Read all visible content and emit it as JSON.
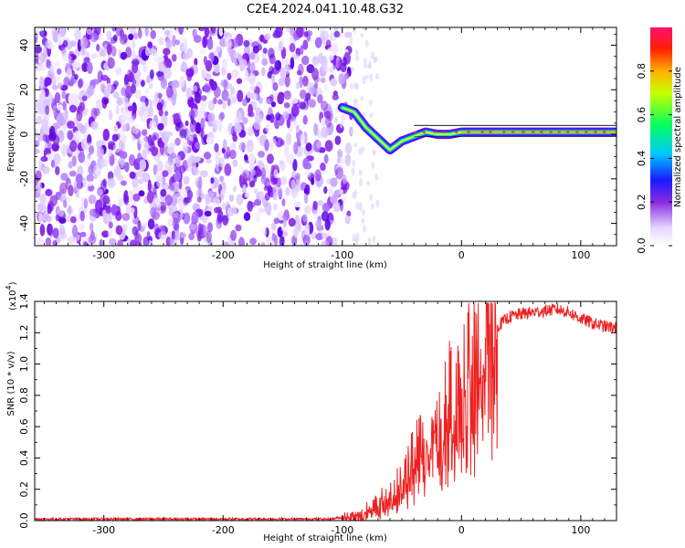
{
  "title": "C2E4.2024.041.10.48.G32",
  "chart_data": [
    {
      "type": "heatmap",
      "title": "C2E4.2024.041.10.48.G32",
      "xlabel": "Height of straight line (km)",
      "ylabel": "Frequency (Hz)",
      "xlim": [
        -358,
        130
      ],
      "ylim": [
        -50,
        48
      ],
      "xticks": [
        -300,
        -200,
        -100,
        0,
        100
      ],
      "yticks": [
        -40,
        -20,
        0,
        20,
        40
      ],
      "xtick_labels": [
        "-300",
        "-200",
        "-100",
        "0",
        "100"
      ],
      "ytick_labels": [
        "-40",
        "-20",
        "0",
        "20",
        "40"
      ],
      "colorbar": {
        "label": "Normalized spectral amplitude",
        "range": [
          0,
          1
        ],
        "ticks": [
          0.0,
          0.2,
          0.4,
          0.6,
          0.8
        ],
        "tick_labels": [
          "0.0",
          "0.2",
          "0.4",
          "0.6",
          "0.8"
        ],
        "colormap": "rainbow"
      },
      "description_of_signal": {
        "noise_region_x": [
          -358,
          -92
        ],
        "ridge": [
          {
            "x": -100,
            "f": 12
          },
          {
            "x": -90,
            "f": 10
          },
          {
            "x": -80,
            "f": 3
          },
          {
            "x": -70,
            "f": -2
          },
          {
            "x": -60,
            "f": -7
          },
          {
            "x": -50,
            "f": -3
          },
          {
            "x": -40,
            "f": -1
          },
          {
            "x": -30,
            "f": 1
          },
          {
            "x": -20,
            "f": 0
          },
          {
            "x": -10,
            "f": 0
          },
          {
            "x": 0,
            "f": 1
          },
          {
            "x": 20,
            "f": 1
          },
          {
            "x": 50,
            "f": 1
          },
          {
            "x": 80,
            "f": 1
          },
          {
            "x": 100,
            "f": 1
          },
          {
            "x": 130,
            "f": 1
          }
        ],
        "center_line_f": 1
      }
    },
    {
      "type": "line",
      "xlabel": "Height of straight line (km)",
      "ylabel": "SNR (10 * v/v)",
      "exponent_label": "(x10",
      "exponent_power": "4",
      "exponent_close": ")",
      "xlim": [
        -358,
        130
      ],
      "ylim": [
        0,
        1.4
      ],
      "xticks": [
        -300,
        -200,
        -100,
        0,
        100
      ],
      "yticks": [
        0.0,
        0.2,
        0.4,
        0.6,
        0.8,
        1.0,
        1.2,
        1.4
      ],
      "xtick_labels": [
        "-300",
        "-200",
        "-100",
        "0",
        "100"
      ],
      "ytick_labels": [
        "0.0",
        "0.2",
        "0.4",
        "0.6",
        "0.8",
        "1.0",
        "1.2",
        "1.4"
      ],
      "color": "#ee2222",
      "series": [
        {
          "name": "SNR",
          "x": [
            -358,
            -300,
            -250,
            -200,
            -150,
            -110,
            -100,
            -90,
            -80,
            -70,
            -60,
            -50,
            -40,
            -30,
            -20,
            -10,
            0,
            10,
            20,
            30,
            40,
            50,
            60,
            70,
            80,
            90,
            100,
            110,
            120,
            130
          ],
          "values": [
            0.01,
            0.01,
            0.01,
            0.01,
            0.01,
            0.01,
            0.02,
            0.04,
            0.07,
            0.1,
            0.17,
            0.25,
            0.38,
            0.5,
            0.62,
            0.75,
            0.88,
            1.02,
            1.15,
            1.24,
            1.3,
            1.32,
            1.33,
            1.34,
            1.35,
            1.33,
            1.29,
            1.26,
            1.24,
            1.23
          ]
        }
      ]
    }
  ]
}
